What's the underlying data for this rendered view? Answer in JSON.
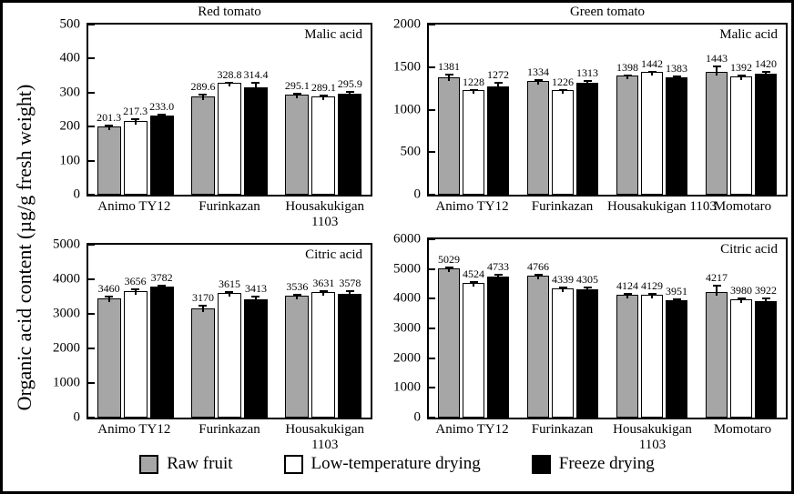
{
  "figure": {
    "y_axis_label": "Organic acid content (µg/g fresh weight)"
  },
  "legend": {
    "items": [
      {
        "label": "Raw fruit",
        "color": "#a6a6a6"
      },
      {
        "label": "Low-temperature drying",
        "color": "#ffffff"
      },
      {
        "label": "Freeze drying",
        "color": "#000000"
      }
    ]
  },
  "chart_data": [
    {
      "type": "bar",
      "title": "Red tomato",
      "annotation": "Malic acid",
      "ylim": [
        0,
        500
      ],
      "ytick_step": 100,
      "grid": false,
      "categories": [
        "Animo TY12",
        "Furinkazan",
        "Housakukigan\n1103"
      ],
      "series": [
        {
          "name": "Raw fruit",
          "values": [
            201.3,
            289.6,
            295.1
          ],
          "labels": [
            "201.3",
            "289.6",
            "295.1"
          ],
          "errors": [
            4,
            6,
            4
          ]
        },
        {
          "name": "Low-temperature drying",
          "values": [
            217.3,
            328.8,
            289.1
          ],
          "labels": [
            "217.3",
            "328.8",
            "289.1"
          ],
          "errors": [
            8,
            4,
            4
          ]
        },
        {
          "name": "Freeze drying",
          "values": [
            233.0,
            314.4,
            295.9
          ],
          "labels": [
            "233.0",
            "314.4",
            "295.9"
          ],
          "errors": [
            5,
            18,
            8
          ]
        }
      ]
    },
    {
      "type": "bar",
      "title": "Green tomato",
      "annotation": "Malic acid",
      "ylim": [
        0,
        2000
      ],
      "ytick_step": 500,
      "grid": false,
      "categories": [
        "Animo TY12",
        "Furinkazan",
        "Housakukigan 1103",
        "Momotaro"
      ],
      "series": [
        {
          "name": "Raw fruit",
          "values": [
            1381,
            1334,
            1398,
            1443
          ],
          "labels": [
            "1381",
            "1334",
            "1398",
            "1443"
          ],
          "errors": [
            45,
            25,
            18,
            80
          ]
        },
        {
          "name": "Low-temperature drying",
          "values": [
            1228,
            1226,
            1442,
            1392
          ],
          "labels": [
            "1228",
            "1226",
            "1442",
            "1392"
          ],
          "errors": [
            12,
            15,
            15,
            20
          ]
        },
        {
          "name": "Freeze drying",
          "values": [
            1272,
            1313,
            1383,
            1420
          ],
          "labels": [
            "1272",
            "1313",
            "1383",
            "1420"
          ],
          "errors": [
            55,
            38,
            18,
            35
          ]
        }
      ]
    },
    {
      "type": "bar",
      "title": "",
      "annotation": "Citric acid",
      "ylim": [
        0,
        5000
      ],
      "ytick_step": 1000,
      "grid": false,
      "categories": [
        "Animo TY12",
        "Furinkazan",
        "Housakukigan\n1103"
      ],
      "series": [
        {
          "name": "Raw fruit",
          "values": [
            3460,
            3170,
            3536
          ],
          "labels": [
            "3460",
            "3170",
            "3536"
          ],
          "errors": [
            60,
            90,
            50
          ]
        },
        {
          "name": "Low-temperature drying",
          "values": [
            3656,
            3615,
            3631
          ],
          "labels": [
            "3656",
            "3615",
            "3631"
          ],
          "errors": [
            90,
            50,
            60
          ]
        },
        {
          "name": "Freeze drying",
          "values": [
            3782,
            3413,
            3578
          ],
          "labels": [
            "3782",
            "3413",
            "3578"
          ],
          "errors": [
            70,
            120,
            100
          ]
        }
      ]
    },
    {
      "type": "bar",
      "title": "",
      "annotation": "Citric acid",
      "ylim": [
        0,
        6000
      ],
      "ytick_step": 1000,
      "grid": false,
      "categories": [
        "Animo TY12",
        "Furinkazan",
        "Housakukigan\n1103",
        "Momotaro"
      ],
      "series": [
        {
          "name": "Raw fruit",
          "values": [
            5029,
            4766,
            4124,
            4217
          ],
          "labels": [
            "5029",
            "4766",
            "4124",
            "4217"
          ],
          "errors": [
            60,
            80,
            80,
            240
          ]
        },
        {
          "name": "Low-temperature drying",
          "values": [
            4524,
            4339,
            4129,
            3980
          ],
          "labels": [
            "4524",
            "4339",
            "4129",
            "3980"
          ],
          "errors": [
            80,
            60,
            80,
            60
          ]
        },
        {
          "name": "Freeze drying",
          "values": [
            4733,
            4305,
            3951,
            3922
          ],
          "labels": [
            "4733",
            "4305",
            "3951",
            "3922"
          ],
          "errors": [
            110,
            110,
            50,
            110
          ]
        }
      ]
    }
  ]
}
